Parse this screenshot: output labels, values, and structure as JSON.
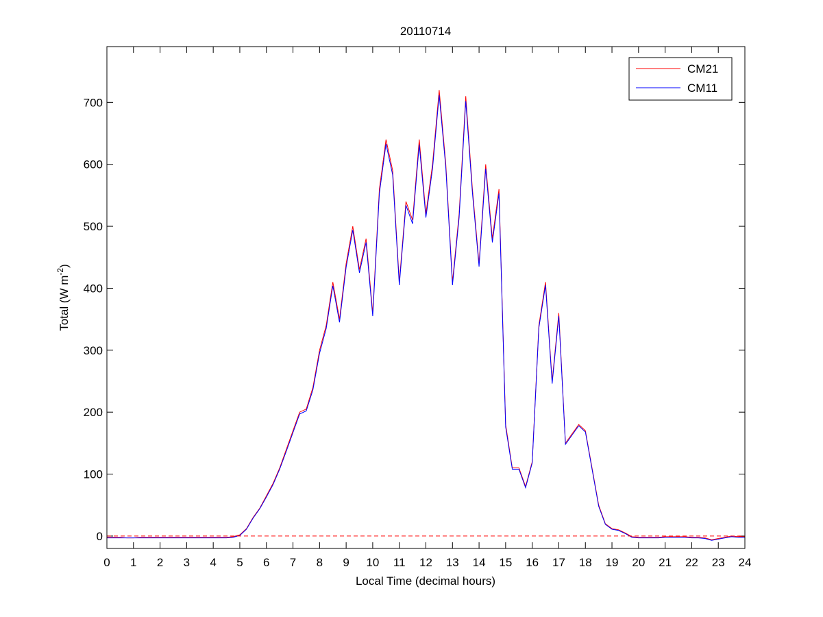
{
  "chart_data": {
    "type": "line",
    "title": "20110714",
    "xlabel": "Local Time (decimal hours)",
    "ylabel": {
      "text": "Total (W m",
      "superscript": "-2",
      "suffix": ")"
    },
    "x": [
      0,
      0.25,
      0.5,
      0.75,
      1,
      1.25,
      1.5,
      1.75,
      2,
      2.25,
      2.5,
      2.75,
      3,
      3.25,
      3.5,
      3.75,
      4,
      4.25,
      4.5,
      4.75,
      5,
      5.25,
      5.5,
      5.75,
      6,
      6.25,
      6.5,
      6.75,
      7,
      7.25,
      7.5,
      7.75,
      8,
      8.25,
      8.5,
      8.75,
      9,
      9.25,
      9.5,
      9.75,
      10,
      10.25,
      10.5,
      10.75,
      11,
      11.25,
      11.5,
      11.75,
      12,
      12.25,
      12.5,
      12.75,
      13,
      13.25,
      13.5,
      13.75,
      14,
      14.25,
      14.5,
      14.75,
      15,
      15.25,
      15.5,
      15.75,
      16,
      16.25,
      16.5,
      16.75,
      17,
      17.25,
      17.5,
      17.75,
      18,
      18.25,
      18.5,
      18.75,
      19,
      19.25,
      19.5,
      19.75,
      20,
      20.25,
      20.5,
      20.75,
      21,
      21.25,
      21.5,
      21.75,
      22,
      22.25,
      22.5,
      22.75,
      23,
      23.25,
      23.5,
      23.75,
      24
    ],
    "series": [
      {
        "name": "CM21",
        "color": "#ff0000",
        "values": [
          -2,
          -2,
          -2,
          -3,
          -3,
          -2,
          -2,
          -2,
          -2,
          -2,
          -2,
          -2,
          -2,
          -2,
          -2,
          -2,
          -2,
          -2,
          -2,
          -1,
          2,
          12,
          30,
          45,
          65,
          85,
          110,
          140,
          170,
          200,
          205,
          240,
          300,
          340,
          410,
          350,
          440,
          500,
          430,
          480,
          360,
          560,
          640,
          590,
          410,
          540,
          510,
          640,
          520,
          600,
          720,
          600,
          410,
          520,
          710,
          560,
          440,
          600,
          480,
          560,
          180,
          110,
          110,
          80,
          120,
          340,
          410,
          250,
          360,
          150,
          165,
          180,
          170,
          110,
          50,
          20,
          12,
          10,
          5,
          -1,
          -2,
          -2,
          -2,
          -2,
          -1,
          -1,
          -1,
          -1,
          -2,
          -2,
          -3,
          -6,
          -4,
          -2,
          0,
          -1,
          -1
        ]
      },
      {
        "name": "CM11",
        "color": "#0000ff",
        "values": [
          -3,
          -3,
          -3,
          -3,
          -3,
          -3,
          -3,
          -3,
          -3,
          -3,
          -3,
          -3,
          -3,
          -3,
          -3,
          -3,
          -3,
          -3,
          -3,
          -2,
          1,
          11,
          29,
          44,
          63,
          83,
          108,
          137,
          167,
          197,
          202,
          236,
          295,
          335,
          404,
          345,
          434,
          494,
          425,
          474,
          355,
          553,
          633,
          583,
          405,
          534,
          504,
          632,
          514,
          593,
          712,
          594,
          405,
          514,
          702,
          554,
          435,
          593,
          474,
          553,
          176,
          108,
          108,
          78,
          118,
          336,
          405,
          246,
          355,
          148,
          163,
          178,
          168,
          108,
          48,
          19,
          11,
          9,
          4,
          -2,
          -3,
          -3,
          -3,
          -3,
          -2,
          -2,
          -2,
          -2,
          -3,
          -3,
          -4,
          -7,
          -5,
          -3,
          -1,
          -2,
          -2
        ]
      }
    ],
    "hline": {
      "value": 0,
      "color": "#ff0000",
      "style": "dashed"
    },
    "xlim": [
      0,
      24
    ],
    "xticks": [
      0,
      1,
      2,
      3,
      4,
      5,
      6,
      7,
      8,
      9,
      10,
      11,
      12,
      13,
      14,
      15,
      16,
      17,
      18,
      19,
      20,
      21,
      22,
      23,
      24
    ],
    "ylim": [
      -20,
      790
    ],
    "yticks": [
      0,
      100,
      200,
      300,
      400,
      500,
      600,
      700
    ],
    "legend": "northeast",
    "grid": false
  }
}
